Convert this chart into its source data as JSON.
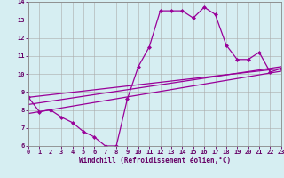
{
  "xlabel": "Windchill (Refroidissement éolien,°C)",
  "ylabel": "",
  "bg_color": "#d6eef2",
  "line_color": "#990099",
  "grid_color": "#aaaaaa",
  "xlim": [
    0,
    23
  ],
  "ylim": [
    6,
    14
  ],
  "xticks": [
    0,
    1,
    2,
    3,
    4,
    5,
    6,
    7,
    8,
    9,
    10,
    11,
    12,
    13,
    14,
    15,
    16,
    17,
    18,
    19,
    20,
    21,
    22,
    23
  ],
  "yticks": [
    6,
    7,
    8,
    9,
    10,
    11,
    12,
    13,
    14
  ],
  "series": [
    {
      "x": [
        0,
        1,
        2,
        3,
        4,
        5,
        6,
        7,
        8,
        9,
        10,
        11,
        12,
        13,
        14,
        15,
        16,
        17,
        18,
        19,
        20,
        21,
        22,
        23
      ],
      "y": [
        8.7,
        7.9,
        8.0,
        7.6,
        7.3,
        6.8,
        6.5,
        6.0,
        6.0,
        8.6,
        10.4,
        11.5,
        13.5,
        13.5,
        13.5,
        13.1,
        13.7,
        13.3,
        11.6,
        10.8,
        10.8,
        11.2,
        10.1,
        10.3
      ],
      "marker": "D",
      "markersize": 2.0,
      "linewidth": 0.9
    },
    {
      "x": [
        0,
        23
      ],
      "y": [
        8.7,
        10.3
      ],
      "marker": null,
      "linewidth": 0.9
    },
    {
      "x": [
        0,
        23
      ],
      "y": [
        8.3,
        10.4
      ],
      "marker": null,
      "linewidth": 0.9
    },
    {
      "x": [
        0,
        23
      ],
      "y": [
        7.8,
        10.15
      ],
      "marker": null,
      "linewidth": 0.9
    }
  ],
  "tick_fontsize": 5.0,
  "xlabel_fontsize": 5.5,
  "spine_color": "#888888",
  "label_color": "#660066"
}
